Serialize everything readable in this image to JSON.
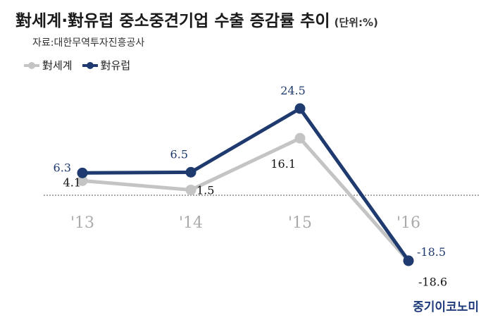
{
  "title": "對세계·對유럽 중소중견기업 수출 증감률 추이",
  "unit": "(단위:%)",
  "source": "자료:대한무역투자진흥공사",
  "brand": "중기이코노미",
  "colors": {
    "world": "#c4c4c4",
    "europe": "#1e3a6e",
    "europe_label": "#1e3a6e",
    "world_label": "#111111",
    "tick": "#aaaaaa"
  },
  "chart_data": {
    "type": "line",
    "categories": [
      "'13",
      "'14",
      "'15",
      "'16"
    ],
    "series": [
      {
        "name": "對세계",
        "values": [
          4.1,
          1.5,
          16.1,
          -18.6
        ]
      },
      {
        "name": "對유럽",
        "values": [
          6.3,
          6.5,
          24.5,
          -18.5
        ]
      }
    ],
    "value_labels": {
      "對세계": [
        "4.1",
        "1.5",
        "16.1",
        "-18.6"
      ],
      "對유럽": [
        "6.3",
        "6.5",
        "24.5",
        "-18.5"
      ]
    },
    "legend": "top-left",
    "grid": false,
    "zero_line": true
  }
}
